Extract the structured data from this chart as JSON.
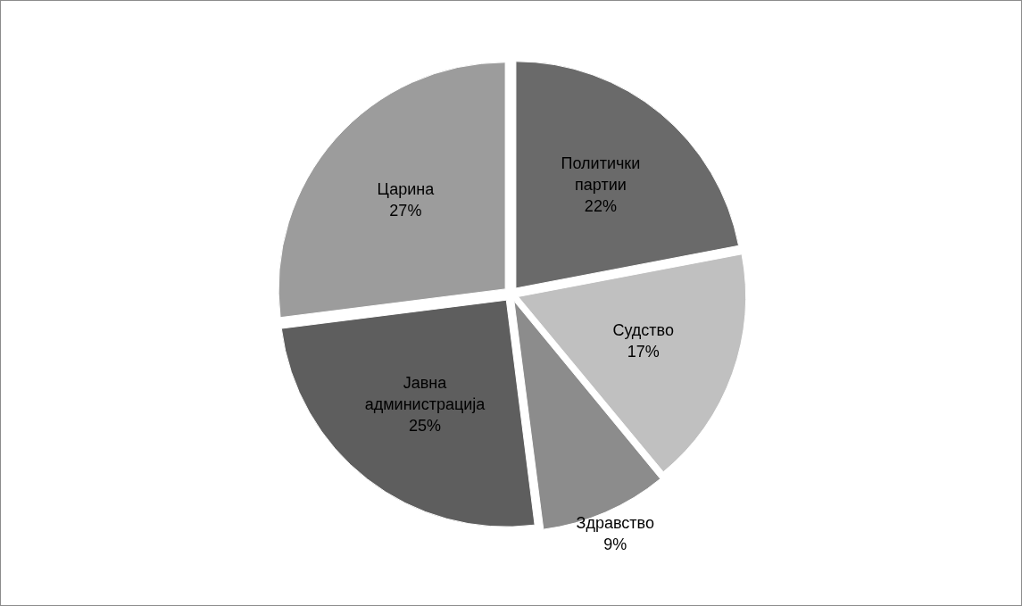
{
  "chart_data": {
    "type": "pie",
    "categories": [
      "Политички партии",
      "Судство",
      "Здравство",
      "Јавна администрација",
      "Царина"
    ],
    "values": [
      22,
      17,
      9,
      25,
      27
    ],
    "colors": [
      "#6a6a6a",
      "#c0c0c0",
      "#8c8c8c",
      "#5e5e5e",
      "#9c9c9c"
    ],
    "value_labels": [
      "22%",
      "17%",
      "9%",
      "25%",
      "27%"
    ],
    "legend": false
  }
}
